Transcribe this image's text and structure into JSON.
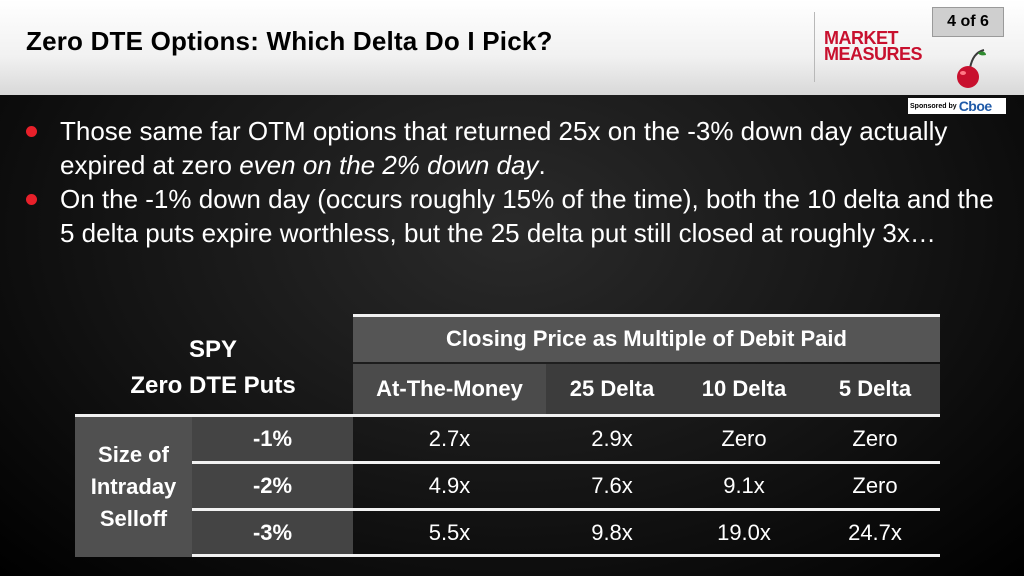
{
  "header": {
    "title": "Zero DTE Options: Which Delta Do I Pick?",
    "page": "4 of 6",
    "logo_line1": "MARKET",
    "logo_line2": "MEASURES",
    "sponsor_label": "Sponsored by",
    "sponsor_brand": "Cboe",
    "colors": {
      "logo_red": "#c8102e",
      "bullet_red": "#e8202a"
    }
  },
  "bullets": [
    {
      "text_before": "Those same far OTM options that returned 25x on the -3% down day actually expired at zero ",
      "text_italic": "even on the 2% down day",
      "text_after": "."
    },
    {
      "text_before": "On the -1% down day (occurs roughly 15% of the time), both the 10 delta and the 5 delta puts expire worthless, but the 25 delta put still closed at roughly 3x…",
      "text_italic": "",
      "text_after": ""
    }
  ],
  "table": {
    "corner_line1": "SPY",
    "corner_line2": "Zero DTE Puts",
    "group_header": "Closing Price as Multiple of Debit Paid",
    "columns": [
      "At-The-Money",
      "25 Delta",
      "10 Delta",
      "5 Delta"
    ],
    "row_group_line1": "Size of",
    "row_group_line2": "Intraday",
    "row_group_line3": "Selloff",
    "rows": [
      {
        "label": "-1%",
        "values": [
          "2.7x",
          "2.9x",
          "Zero",
          "Zero"
        ]
      },
      {
        "label": "-2%",
        "values": [
          "4.9x",
          "7.6x",
          "9.1x",
          "Zero"
        ]
      },
      {
        "label": "-3%",
        "values": [
          "5.5x",
          "9.8x",
          "19.0x",
          "24.7x"
        ]
      }
    ]
  }
}
